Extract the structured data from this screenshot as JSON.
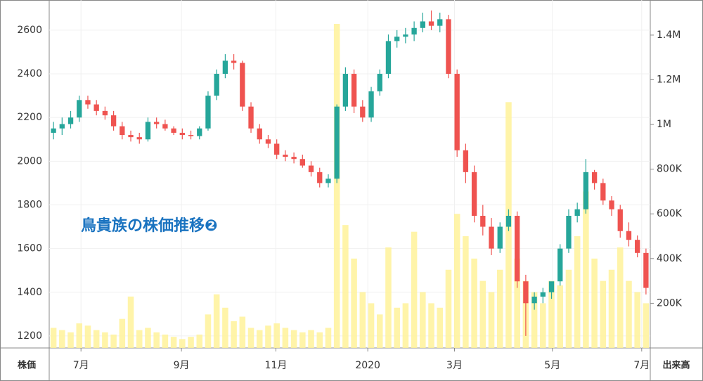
{
  "chart_data": {
    "type": "candlestick",
    "title": "鳥貴族の株価推移❷",
    "y_label": "株価",
    "y2_label": "出来高",
    "up_color": "#26a69a",
    "down_color": "#ef5350",
    "volume_color": "#fff29a",
    "grid": true,
    "categories": [
      null,
      null,
      null,
      null,
      null,
      null,
      null,
      null,
      null,
      null,
      null,
      null,
      null,
      null,
      null,
      null,
      null,
      null,
      null,
      null,
      null,
      null,
      null,
      null,
      null,
      null,
      null,
      null,
      null,
      null,
      null,
      null,
      null,
      null,
      null,
      null,
      null,
      null,
      null,
      null,
      null,
      null,
      null,
      null,
      null,
      null,
      null,
      null,
      null,
      null,
      null,
      null,
      null,
      null,
      null,
      null,
      null,
      null,
      null,
      null,
      null,
      null,
      null,
      null,
      null,
      null,
      null,
      null,
      null,
      null
    ],
    "xlim": [
      -0.5,
      69.5
    ],
    "xticks": [
      {
        "value": 3.2,
        "label": "7月"
      },
      {
        "value": 14.9,
        "label": "9月"
      },
      {
        "value": 25.9,
        "label": "11月"
      },
      {
        "value": 36.6,
        "label": "2020"
      },
      {
        "value": 46.7,
        "label": "3月"
      },
      {
        "value": 58.1,
        "label": "5月"
      },
      {
        "value": 68.5,
        "label": "7月"
      }
    ],
    "ylim": [
      1145,
      2738
    ],
    "yticks": [
      1200,
      1400,
      1600,
      1800,
      2000,
      2200,
      2400,
      2600
    ],
    "y2lim": [
      0,
      1557000
    ],
    "y2ticks": [
      {
        "value": 200000,
        "label": "200K"
      },
      {
        "value": 400000,
        "label": "400K"
      },
      {
        "value": 600000,
        "label": "600K"
      },
      {
        "value": 800000,
        "label": "800K"
      },
      {
        "value": 1000000,
        "label": "1M"
      },
      {
        "value": 1200000,
        "label": "1.2M"
      },
      {
        "value": 1400000,
        "label": "1.4M"
      }
    ],
    "open": [
      2130,
      2150,
      2170,
      2200,
      2280,
      2260,
      2230,
      2210,
      2160,
      2120,
      2110,
      2100,
      2180,
      2170,
      2150,
      2130,
      2120,
      2115,
      2150,
      2300,
      2400,
      2460,
      2450,
      2250,
      2150,
      2100,
      2080,
      2030,
      2020,
      2010,
      1980,
      1950,
      1900,
      1920,
      2250,
      2400,
      2250,
      2200,
      2320,
      2400,
      2550,
      2570,
      2580,
      2610,
      2640,
      2620,
      2650,
      2400,
      2050,
      1950,
      1750,
      1700,
      1600,
      1700,
      1750,
      1450,
      1350,
      1380,
      1400,
      1450,
      1600,
      1750,
      1780,
      1950,
      1900,
      1820,
      1780,
      1680,
      1640,
      1580
    ],
    "high": [
      2180,
      2200,
      2230,
      2300,
      2300,
      2280,
      2250,
      2230,
      2180,
      2140,
      2130,
      2200,
      2200,
      2190,
      2160,
      2150,
      2140,
      2160,
      2320,
      2420,
      2490,
      2490,
      2460,
      2270,
      2170,
      2120,
      2100,
      2050,
      2040,
      2030,
      2000,
      1970,
      1940,
      2260,
      2430,
      2420,
      2280,
      2340,
      2420,
      2580,
      2600,
      2610,
      2640,
      2680,
      2690,
      2680,
      2670,
      2420,
      2080,
      1980,
      1800,
      1740,
      1720,
      1780,
      1770,
      1480,
      1400,
      1420,
      1440,
      1620,
      1780,
      1810,
      2010,
      1960,
      1920,
      1840,
      1800,
      1720,
      1660,
      1600
    ],
    "low": [
      2100,
      2120,
      2150,
      2180,
      2240,
      2210,
      2190,
      2140,
      2100,
      2090,
      2080,
      2090,
      2150,
      2140,
      2120,
      2100,
      2100,
      2100,
      2140,
      2280,
      2380,
      2420,
      2230,
      2130,
      2080,
      2060,
      2010,
      2000,
      1990,
      1970,
      1930,
      1880,
      1880,
      1900,
      2230,
      2220,
      2180,
      2180,
      2300,
      2380,
      2520,
      2540,
      2550,
      2590,
      2600,
      2590,
      2380,
      2020,
      1900,
      1720,
      1660,
      1570,
      1580,
      1680,
      1420,
      1200,
      1320,
      1350,
      1370,
      1430,
      1580,
      1720,
      1760,
      1870,
      1800,
      1750,
      1650,
      1610,
      1560,
      1390
    ],
    "close": [
      2150,
      2170,
      2200,
      2280,
      2260,
      2230,
      2210,
      2160,
      2120,
      2110,
      2100,
      2180,
      2170,
      2150,
      2130,
      2120,
      2115,
      2150,
      2300,
      2400,
      2460,
      2450,
      2250,
      2150,
      2100,
      2080,
      2030,
      2020,
      2010,
      1980,
      1950,
      1900,
      1920,
      2250,
      2400,
      2250,
      2200,
      2320,
      2400,
      2550,
      2570,
      2580,
      2610,
      2640,
      2620,
      2650,
      2400,
      2050,
      1950,
      1750,
      1700,
      1600,
      1700,
      1750,
      1450,
      1350,
      1380,
      1400,
      1450,
      1600,
      1750,
      1780,
      1950,
      1900,
      1820,
      1780,
      1680,
      1640,
      1580,
      1420
    ],
    "volume": [
      90000,
      80000,
      70000,
      110000,
      100000,
      80000,
      70000,
      60000,
      130000,
      230000,
      80000,
      90000,
      70000,
      60000,
      50000,
      40000,
      50000,
      60000,
      150000,
      240000,
      180000,
      120000,
      140000,
      90000,
      80000,
      100000,
      110000,
      90000,
      80000,
      70000,
      80000,
      70000,
      90000,
      1450000,
      550000,
      400000,
      250000,
      200000,
      150000,
      450000,
      180000,
      200000,
      520000,
      250000,
      200000,
      180000,
      350000,
      600000,
      500000,
      400000,
      300000,
      250000,
      350000,
      1100000,
      400000,
      300000,
      250000,
      200000,
      300000,
      280000,
      350000,
      500000,
      700000,
      400000,
      300000,
      350000,
      450000,
      300000,
      250000,
      200000
    ]
  }
}
